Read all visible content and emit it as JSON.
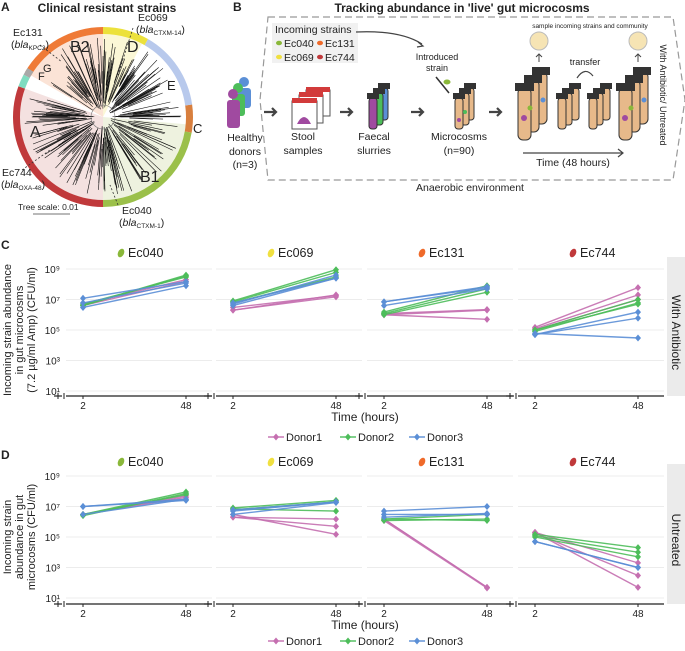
{
  "panel_a": {
    "letter": "A",
    "title": "Clinical resistant strains",
    "clades": [
      {
        "label": "A",
        "color": "#c0393b"
      },
      {
        "label": "B1",
        "color": "#9bc04a"
      },
      {
        "label": "C",
        "color": "#d87f3e"
      },
      {
        "label": "E",
        "color": "#b8c9ec"
      },
      {
        "label": "D",
        "color": "#ece13c"
      },
      {
        "label": "B2",
        "color": "#ef7a36"
      },
      {
        "label": "G",
        "color": "#a8a8a8"
      },
      {
        "label": "F",
        "color": "#7fdcc0"
      }
    ],
    "annotations": [
      {
        "strain": "Ec131",
        "gene": "bla",
        "variant": "KPC2"
      },
      {
        "strain": "Ec069",
        "gene": "bla",
        "variant": "CTXM-14"
      },
      {
        "strain": "Ec744",
        "gene": "bla",
        "variant": "OXA-48"
      },
      {
        "strain": "Ec040",
        "gene": "bla",
        "variant": "CTXM-1"
      }
    ],
    "tree_scale": "Tree scale: 0.01"
  },
  "panel_b": {
    "letter": "B",
    "title": "Tracking abundance in 'live' gut microcosms",
    "incoming_title": "Incoming strains",
    "strains": [
      {
        "name": "Ec040",
        "color": "#8ab83a"
      },
      {
        "name": "Ec131",
        "color": "#ef6a2a"
      },
      {
        "name": "Ec069",
        "color": "#f0e040"
      },
      {
        "name": "Ec744",
        "color": "#c0393b"
      }
    ],
    "donors": [
      "Healthy",
      "donors",
      "(n=3)"
    ],
    "stool": [
      "Stool",
      "samples"
    ],
    "slurries": [
      "Faecal",
      "slurries"
    ],
    "microcosms": [
      "Microcosms",
      "(n=90)"
    ],
    "introduced": [
      "Introduced",
      "strain"
    ],
    "sample_text": "sample incoming strains and community",
    "transfer": "transfer",
    "time": "Time (48 hours)",
    "condition": "With Antibiotic/ Untreated",
    "environment": "Anaerobic environment"
  },
  "chart_data": [
    {
      "panel": "C",
      "type": "line",
      "condition": "With Antibiotic",
      "ylabel": [
        "Incoming strain abundance",
        "in gut microcosms",
        "(7.2 µg/ml Amp) (CFU/ml)"
      ],
      "xlabel": "Time (hours)",
      "x": [
        2,
        48
      ],
      "xtick_labels": [
        "2",
        "48"
      ],
      "yscale": "log",
      "ylim": [
        10,
        1000000000
      ],
      "ytick_labels": [
        "10¹",
        "10³",
        "10⁵",
        "10⁷",
        "10⁹"
      ],
      "grid": true,
      "legend": "bottom",
      "legend_entries": [
        "Donor1",
        "Donor2",
        "Donor3"
      ],
      "donor_colors": [
        "#c56fb0",
        "#4dbd5a",
        "#5b8fd6"
      ],
      "facets": [
        {
          "strain": "Ec040",
          "color": "#8ab83a",
          "donors": [
            [
              [
                5000000.0,
                200000000.0
              ],
              [
                4000000.0,
                150000000.0
              ]
            ],
            [
              [
                4000000.0,
                400000000.0
              ],
              [
                5000000.0,
                300000000.0
              ],
              [
                4000000.0,
                350000000.0
              ]
            ],
            [
              [
                12000000.0,
                150000000.0
              ],
              [
                3000000.0,
                80000000.0
              ],
              [
                6000000.0,
                120000000.0
              ]
            ]
          ]
        },
        {
          "strain": "Ec069",
          "color": "#f0e040",
          "donors": [
            [
              [
                2000000.0,
                20000000.0
              ],
              [
                3000000.0,
                18000000.0
              ],
              [
                2000000.0,
                15000000.0
              ]
            ],
            [
              [
                8000000.0,
                900000000.0
              ],
              [
                7000000.0,
                600000000.0
              ],
              [
                6000000.0,
                300000000.0
              ]
            ],
            [
              [
                5000000.0,
                400000000.0
              ],
              [
                6000000.0,
                250000000.0
              ],
              [
                4000000.0,
                250000000.0
              ]
            ]
          ]
        },
        {
          "strain": "Ec131",
          "color": "#ef6a2a",
          "donors": [
            [
              [
                1000000.0,
                2000000.0
              ],
              [
                1200000.0,
                2200000.0
              ],
              [
                1000000.0,
                500000.0
              ]
            ],
            [
              [
                1500000.0,
                80000000.0
              ],
              [
                1200000.0,
                50000000.0
              ],
              [
                1000000.0,
                30000000.0
              ]
            ],
            [
              [
                7000000.0,
                60000000.0
              ],
              [
                4000000.0,
                50000000.0
              ],
              [
                7000000.0,
                70000000.0
              ]
            ]
          ]
        },
        {
          "strain": "Ec744",
          "color": "#c0393b",
          "donors": [
            [
              [
                150000.0,
                60000000.0
              ],
              [
                120000.0,
                20000000.0
              ],
              [
                100000.0,
                10000000.0
              ]
            ],
            [
              [
                100000.0,
                10000000.0
              ],
              [
                80000.0,
                6000000.0
              ],
              [
                100000.0,
                5000000.0
              ]
            ],
            [
              [
                50000.0,
                1500000.0
              ],
              [
                50000.0,
                600000.0
              ],
              [
                60000.0,
                30000.0
              ]
            ]
          ]
        }
      ]
    },
    {
      "panel": "D",
      "type": "line",
      "condition": "Untreated",
      "ylabel": [
        "Incoming strain",
        "abundance in gut",
        "microcosms (CFU/ml)"
      ],
      "xlabel": "Time (hours)",
      "x": [
        2,
        48
      ],
      "xtick_labels": [
        "2",
        "48"
      ],
      "yscale": "log",
      "ylim": [
        10,
        1000000000
      ],
      "ytick_labels": [
        "10¹",
        "10³",
        "10⁵",
        "10⁷",
        "10⁹"
      ],
      "grid": true,
      "legend": "bottom",
      "legend_entries": [
        "Donor1",
        "Donor2",
        "Donor3"
      ],
      "donor_colors": [
        "#c56fb0",
        "#4dbd5a",
        "#5b8fd6"
      ],
      "facets": [
        {
          "strain": "Ec040",
          "color": "#8ab83a",
          "donors": [
            [
              [
                3000000.0,
                50000000.0
              ],
              [
                3000000.0,
                40000000.0
              ]
            ],
            [
              [
                3000000.0,
                90000000.0
              ],
              [
                2500000.0,
                70000000.0
              ],
              [
                3000000.0,
                60000000.0
              ]
            ],
            [
              [
                10000000.0,
                30000000.0
              ],
              [
                10000000.0,
                25000000.0
              ],
              [
                3000000.0,
                30000000.0
              ]
            ]
          ]
        },
        {
          "strain": "Ec069",
          "color": "#f0e040",
          "donors": [
            [
              [
                2000000.0,
                1500000.0
              ],
              [
                2000000.0,
                500000.0
              ],
              [
                3000000.0,
                150000.0
              ]
            ],
            [
              [
                8000000.0,
                25000000.0
              ],
              [
                7000000.0,
                5000000.0
              ],
              [
                6000000.0,
                20000000.0
              ]
            ],
            [
              [
                5000000.0,
                20000000.0
              ],
              [
                3000000.0,
                18000000.0
              ],
              [
                6000000.0,
                20000000.0
              ]
            ]
          ]
        },
        {
          "strain": "Ec131",
          "color": "#ef6a2a",
          "donors": [
            [
              [
                1500000.0,
                50
              ],
              [
                1200000.0,
                45
              ],
              [
                1500000.0,
                50
              ]
            ],
            [
              [
                1500000.0,
                3000000.0
              ],
              [
                1200000.0,
                1500000.0
              ],
              [
                1500000.0,
                1200000.0
              ]
            ],
            [
              [
                5000000.0,
                10000000.0
              ],
              [
                3000000.0,
                3000000.0
              ],
              [
                2000000.0,
                3500000.0
              ]
            ]
          ]
        },
        {
          "strain": "Ec744",
          "color": "#c0393b",
          "donors": [
            [
              [
                200000.0,
                2000.0
              ],
              [
                180000.0,
                300.0
              ],
              [
                200000.0,
                50
              ]
            ],
            [
              [
                150000.0,
                20000.0
              ],
              [
                120000.0,
                10000.0
              ],
              [
                100000.0,
                5000.0
              ]
            ],
            [
              [
                50000.0,
                1000.0
              ],
              [
                50000.0,
                1000.0
              ]
            ]
          ]
        }
      ]
    }
  ]
}
